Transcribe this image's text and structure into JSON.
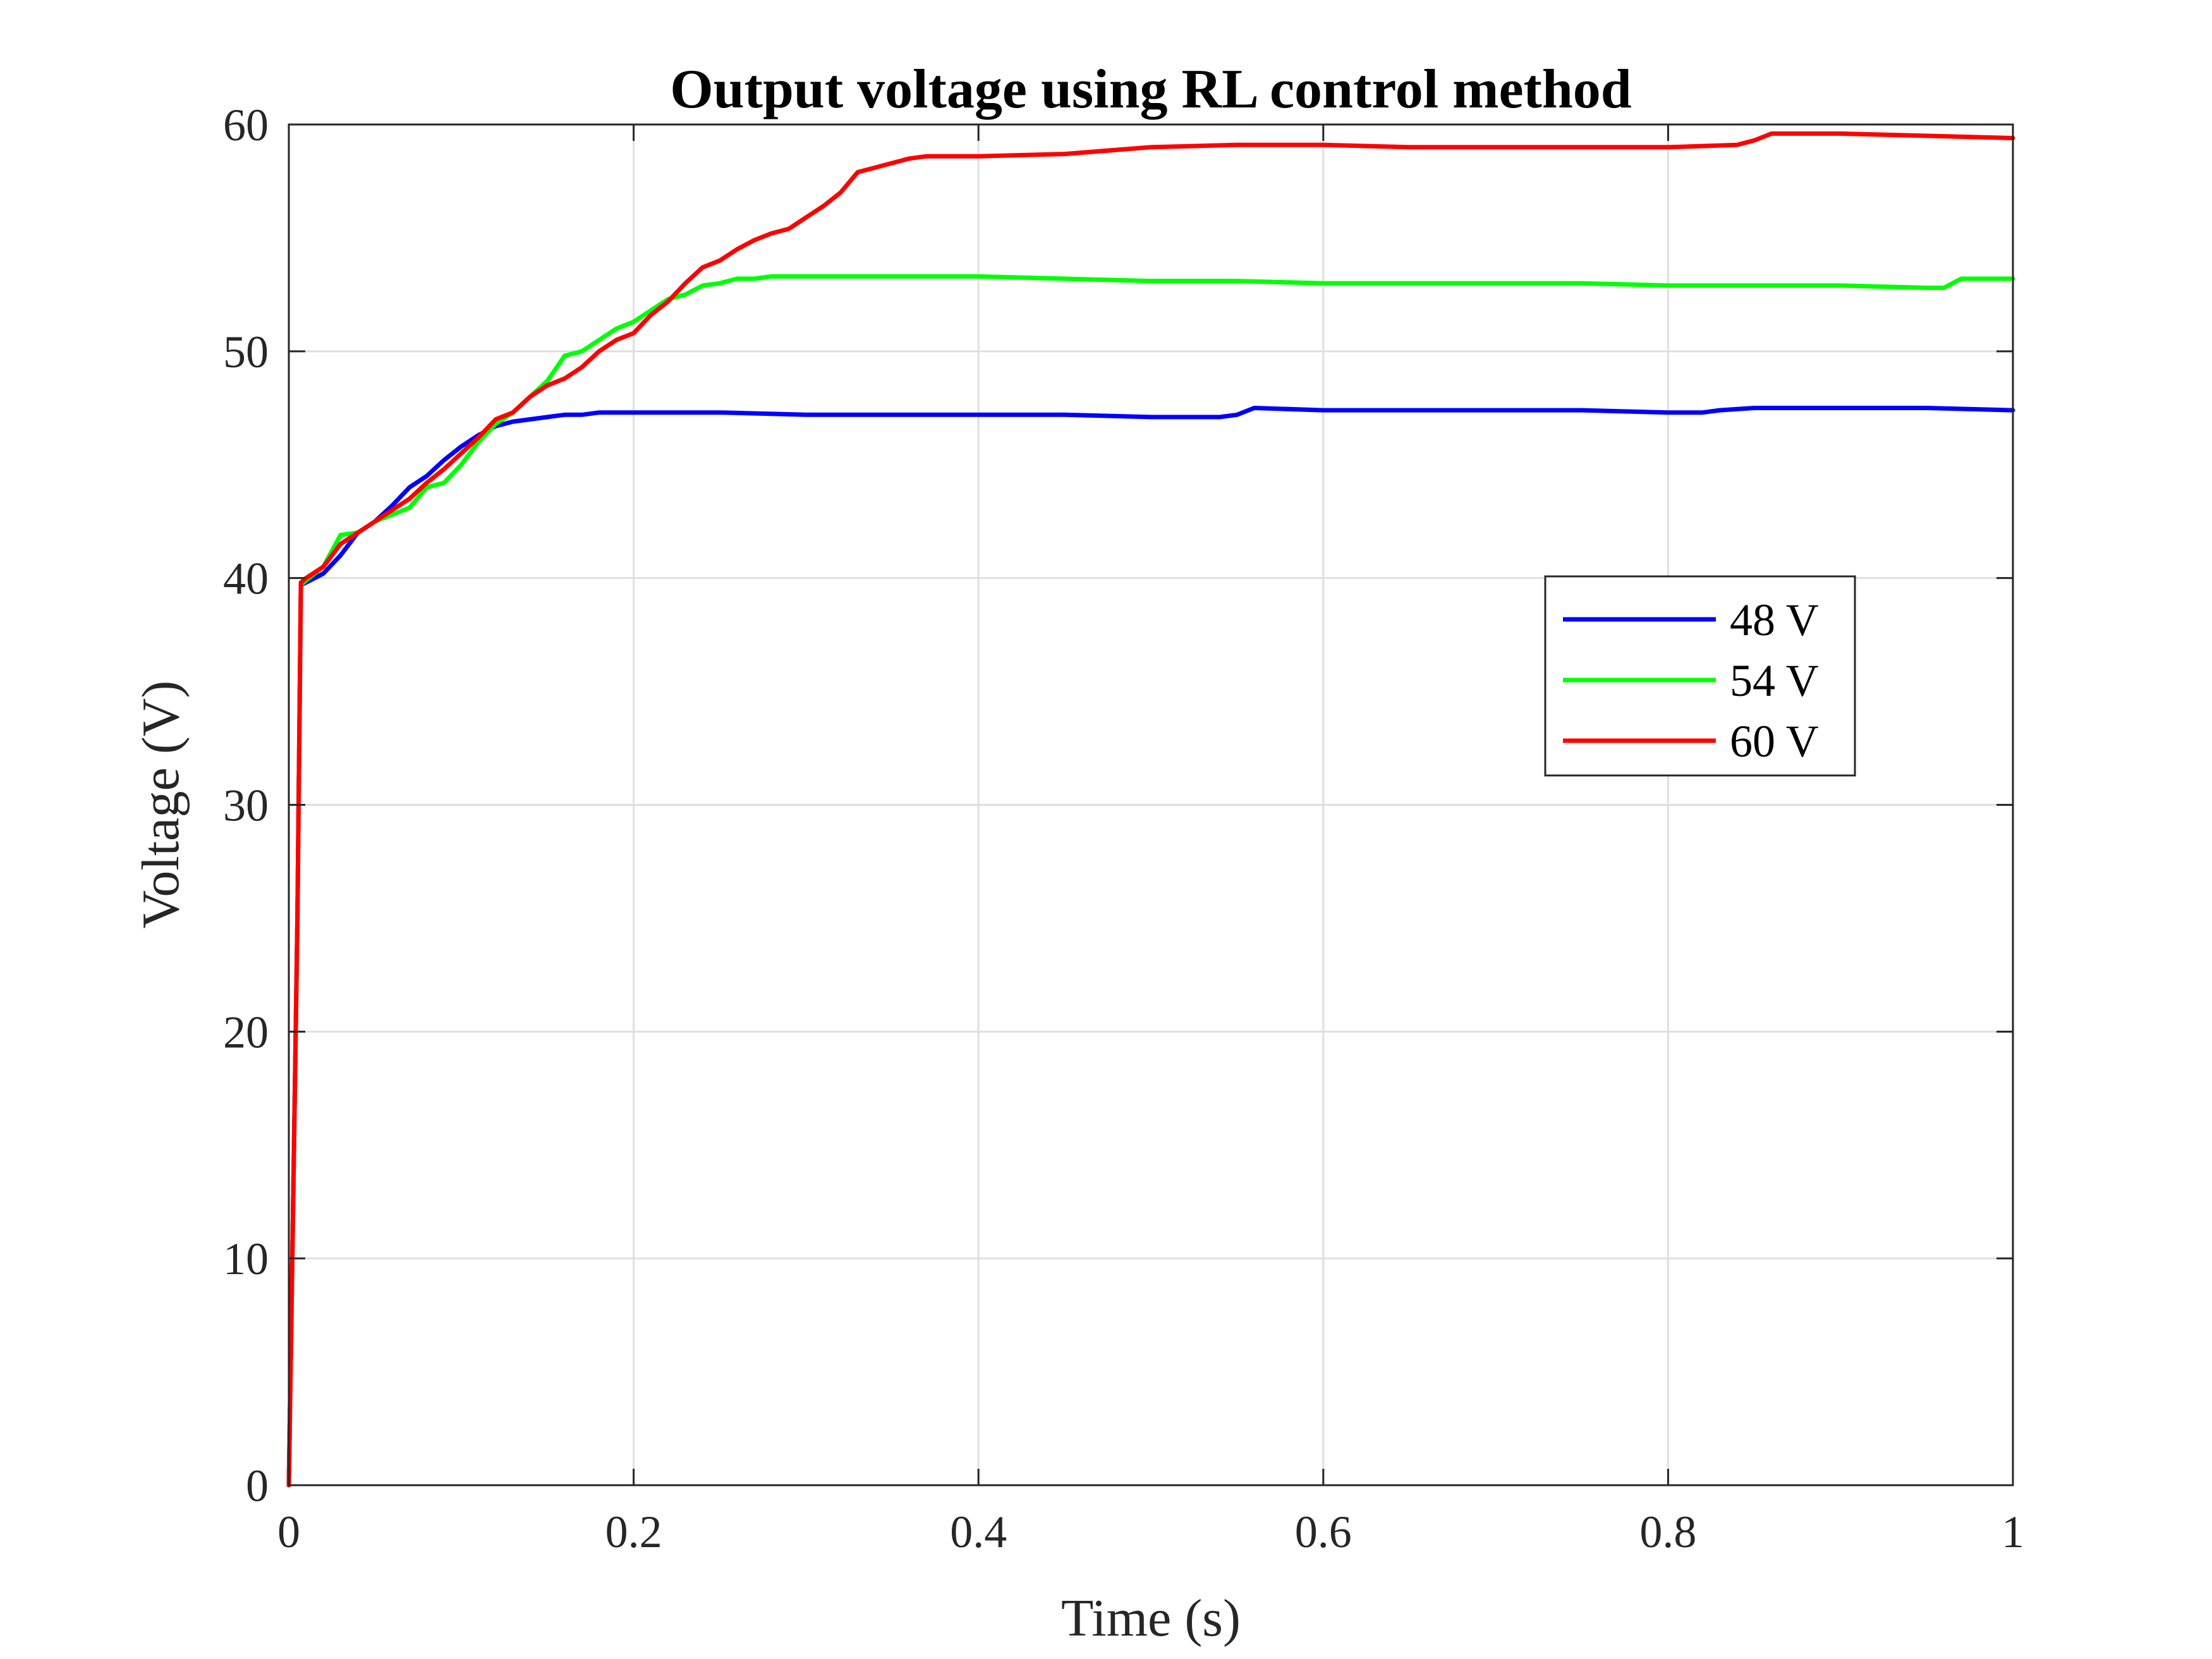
{
  "chart_data": {
    "type": "line",
    "title": "Output voltage using RL control method",
    "xlabel": "Time (s)",
    "ylabel": "Voltage (V)",
    "xlim": [
      0,
      1
    ],
    "ylim": [
      0,
      60
    ],
    "xticks": [
      0,
      0.2,
      0.4,
      0.6,
      0.8,
      1
    ],
    "xtick_labels": [
      "0",
      "0.2",
      "0.4",
      "0.6",
      "0.8",
      "1"
    ],
    "yticks": [
      0,
      10,
      20,
      30,
      40,
      50,
      60
    ],
    "ytick_labels": [
      "0",
      "10",
      "20",
      "30",
      "40",
      "50",
      "60"
    ],
    "grid": true,
    "legend_position": "right",
    "series": [
      {
        "name": "48 V",
        "color": "#0000ff",
        "x": [
          0,
          0.002,
          0.005,
          0.007,
          0.01,
          0.02,
          0.03,
          0.04,
          0.05,
          0.06,
          0.07,
          0.08,
          0.09,
          0.1,
          0.11,
          0.12,
          0.13,
          0.14,
          0.15,
          0.16,
          0.17,
          0.18,
          0.19,
          0.2,
          0.25,
          0.3,
          0.35,
          0.4,
          0.45,
          0.5,
          0.54,
          0.55,
          0.56,
          0.6,
          0.65,
          0.7,
          0.75,
          0.8,
          0.82,
          0.83,
          0.85,
          0.9,
          0.95,
          1
        ],
        "y": [
          0,
          10,
          25,
          39.7,
          39.8,
          40.2,
          41,
          42,
          42.5,
          43.2,
          44,
          44.5,
          45.2,
          45.8,
          46.3,
          46.7,
          46.9,
          47,
          47.1,
          47.2,
          47.2,
          47.3,
          47.3,
          47.3,
          47.3,
          47.2,
          47.2,
          47.2,
          47.2,
          47.1,
          47.1,
          47.2,
          47.5,
          47.4,
          47.4,
          47.4,
          47.4,
          47.3,
          47.3,
          47.4,
          47.5,
          47.5,
          47.5,
          47.4
        ]
      },
      {
        "name": "54 V",
        "color": "#00ff00",
        "x": [
          0,
          0.002,
          0.005,
          0.007,
          0.01,
          0.02,
          0.03,
          0.04,
          0.05,
          0.06,
          0.07,
          0.08,
          0.09,
          0.1,
          0.11,
          0.12,
          0.13,
          0.14,
          0.15,
          0.16,
          0.17,
          0.18,
          0.19,
          0.2,
          0.21,
          0.22,
          0.23,
          0.24,
          0.25,
          0.26,
          0.27,
          0.28,
          0.29,
          0.3,
          0.35,
          0.4,
          0.45,
          0.5,
          0.55,
          0.6,
          0.65,
          0.7,
          0.75,
          0.8,
          0.85,
          0.9,
          0.95,
          0.96,
          0.97,
          1
        ],
        "y": [
          0,
          10,
          25,
          39.7,
          39.9,
          40.5,
          41.9,
          42,
          42.5,
          42.8,
          43.1,
          44,
          44.2,
          45,
          46,
          46.8,
          47.3,
          48,
          48.7,
          49.8,
          50,
          50.5,
          51,
          51.3,
          51.8,
          52.3,
          52.5,
          52.9,
          53,
          53.2,
          53.2,
          53.3,
          53.3,
          53.3,
          53.3,
          53.3,
          53.2,
          53.1,
          53.1,
          53,
          53,
          53,
          53,
          52.9,
          52.9,
          52.9,
          52.8,
          52.8,
          53.2,
          53.2
        ]
      },
      {
        "name": "60 V",
        "color": "#ff0000",
        "x": [
          0,
          0.002,
          0.005,
          0.007,
          0.01,
          0.02,
          0.03,
          0.04,
          0.05,
          0.06,
          0.07,
          0.08,
          0.09,
          0.1,
          0.11,
          0.12,
          0.13,
          0.14,
          0.15,
          0.16,
          0.17,
          0.18,
          0.19,
          0.2,
          0.21,
          0.22,
          0.23,
          0.24,
          0.25,
          0.26,
          0.27,
          0.28,
          0.29,
          0.3,
          0.31,
          0.32,
          0.33,
          0.34,
          0.35,
          0.36,
          0.37,
          0.38,
          0.4,
          0.45,
          0.5,
          0.55,
          0.6,
          0.65,
          0.7,
          0.75,
          0.8,
          0.84,
          0.85,
          0.86,
          0.9,
          0.95,
          1
        ],
        "y": [
          0,
          10,
          25,
          39.8,
          40,
          40.5,
          41.5,
          42,
          42.5,
          43,
          43.5,
          44.2,
          44.8,
          45.5,
          46.2,
          47,
          47.3,
          48,
          48.5,
          48.8,
          49.3,
          50,
          50.5,
          50.8,
          51.6,
          52.2,
          53,
          53.7,
          54,
          54.5,
          54.9,
          55.2,
          55.4,
          55.9,
          56.4,
          57,
          57.9,
          58.1,
          58.3,
          58.5,
          58.6,
          58.6,
          58.6,
          58.7,
          59,
          59.1,
          59.1,
          59,
          59,
          59,
          59,
          59.1,
          59.3,
          59.6,
          59.6,
          59.5,
          59.4
        ]
      }
    ]
  }
}
